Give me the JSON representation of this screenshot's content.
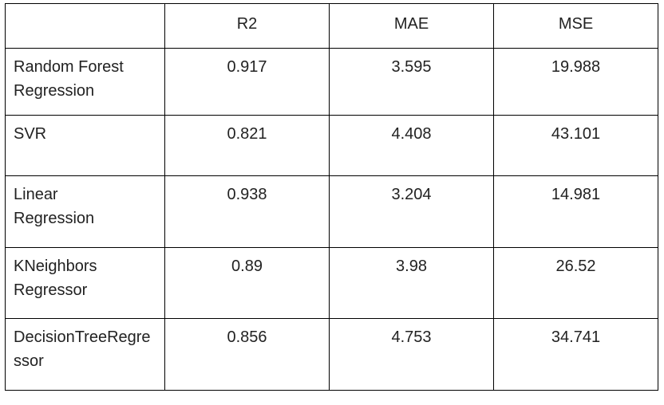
{
  "table": {
    "headers": [
      "",
      "R2",
      "MAE",
      "MSE"
    ],
    "rows": [
      {
        "model": "Random Forest Regression",
        "r2": "0.917",
        "mae": "3.595",
        "mse": "19.988"
      },
      {
        "model": "SVR",
        "r2": "0.821",
        "mae": "4.408",
        "mse": "43.101"
      },
      {
        "model": "Linear Regression",
        "r2": "0.938",
        "mae": "3.204",
        "mse": "14.981"
      },
      {
        "model": "KNeighbors Regressor",
        "r2": "0.89",
        "mae": "3.98",
        "mse": "26.52"
      },
      {
        "model": "DecisionTreeRegressor",
        "r2": "0.856",
        "mae": "4.753",
        "mse": "34.741"
      }
    ]
  }
}
